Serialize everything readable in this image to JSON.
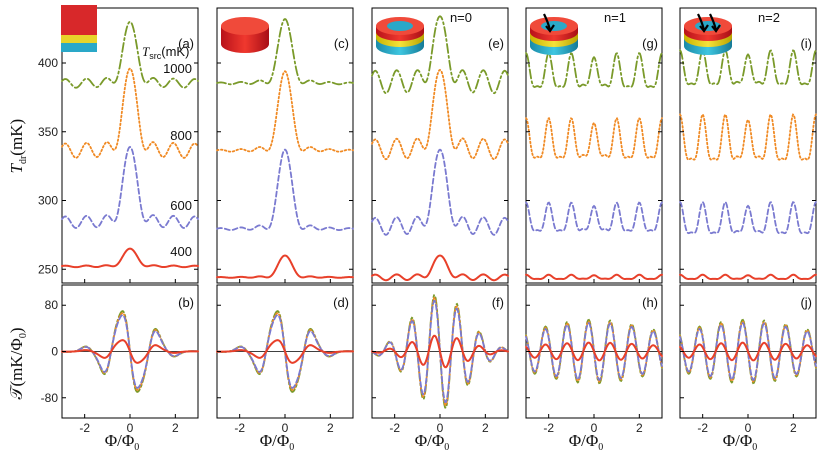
{
  "chart_data": {
    "type": "line",
    "title": "",
    "x_label": "Φ/Φ",
    "x_label_sub": "0",
    "x_range": [
      -3,
      3
    ],
    "x_ticks": [
      "-2",
      "0",
      "2"
    ],
    "top_y_label": "T",
    "top_y_label_sub": "dr",
    "top_y_label_unit": "(mK)",
    "top_y_range": [
      240,
      440
    ],
    "top_y_ticks": [
      "250",
      "300",
      "350",
      "400"
    ],
    "bottom_y_label": "𝒯(mK/Φ",
    "bottom_y_label_sub": "0",
    "bottom_y_label_close": ")",
    "bottom_y_range": [
      -115,
      115
    ],
    "bottom_y_ticks": [
      "80",
      "0",
      "-80"
    ],
    "legend_title": "T",
    "legend_title_sub": "src",
    "legend_title_unit": "(mK)",
    "series_labels": [
      "1000",
      "800",
      "600",
      "400"
    ],
    "series_colors": [
      "#7a9a2a",
      "#f08a24",
      "#7a7ad0",
      "#e8402a"
    ],
    "series_styles": [
      "dashdot",
      "dot",
      "dash",
      "solid"
    ],
    "panels_top": [
      {
        "label": "(a)",
        "note": "",
        "offsets": [
          385,
          336,
          284,
          252
        ],
        "peaks": [
          45,
          60,
          55,
          13
        ],
        "osc": [
          3,
          5,
          4,
          0.5
        ]
      },
      {
        "label": "(c)",
        "note": "",
        "offsets": [
          385,
          336,
          279,
          244
        ],
        "peaks": [
          47,
          58,
          58,
          16
        ],
        "osc": [
          0.5,
          0.5,
          0.5,
          0.2
        ]
      },
      {
        "label": "(e)",
        "note": "n=0",
        "offsets": [
          386,
          337,
          281,
          244
        ],
        "peaks": [
          48,
          58,
          56,
          16
        ],
        "osc": [
          8,
          7,
          6,
          2
        ]
      },
      {
        "label": "(g)",
        "note": "n=1",
        "offsets": [
          391,
          341,
          285,
          244
        ],
        "peaks": [
          0,
          0,
          0,
          0
        ],
        "osc": [
          12,
          14,
          10,
          1.5
        ]
      },
      {
        "label": "(i)",
        "note": "n=2",
        "offsets": [
          393,
          341,
          284,
          244
        ],
        "peaks": [
          0,
          0,
          0,
          0
        ],
        "osc": [
          12,
          16,
          11,
          1.5
        ]
      }
    ],
    "panels_bottom": [
      {
        "label": "(b)"
      },
      {
        "label": "(d)"
      },
      {
        "label": "(f)"
      },
      {
        "label": "(h)"
      },
      {
        "label": "(j)"
      }
    ],
    "y_value_labels_panel_a": [
      "1000",
      "800",
      "600",
      "400"
    ]
  }
}
